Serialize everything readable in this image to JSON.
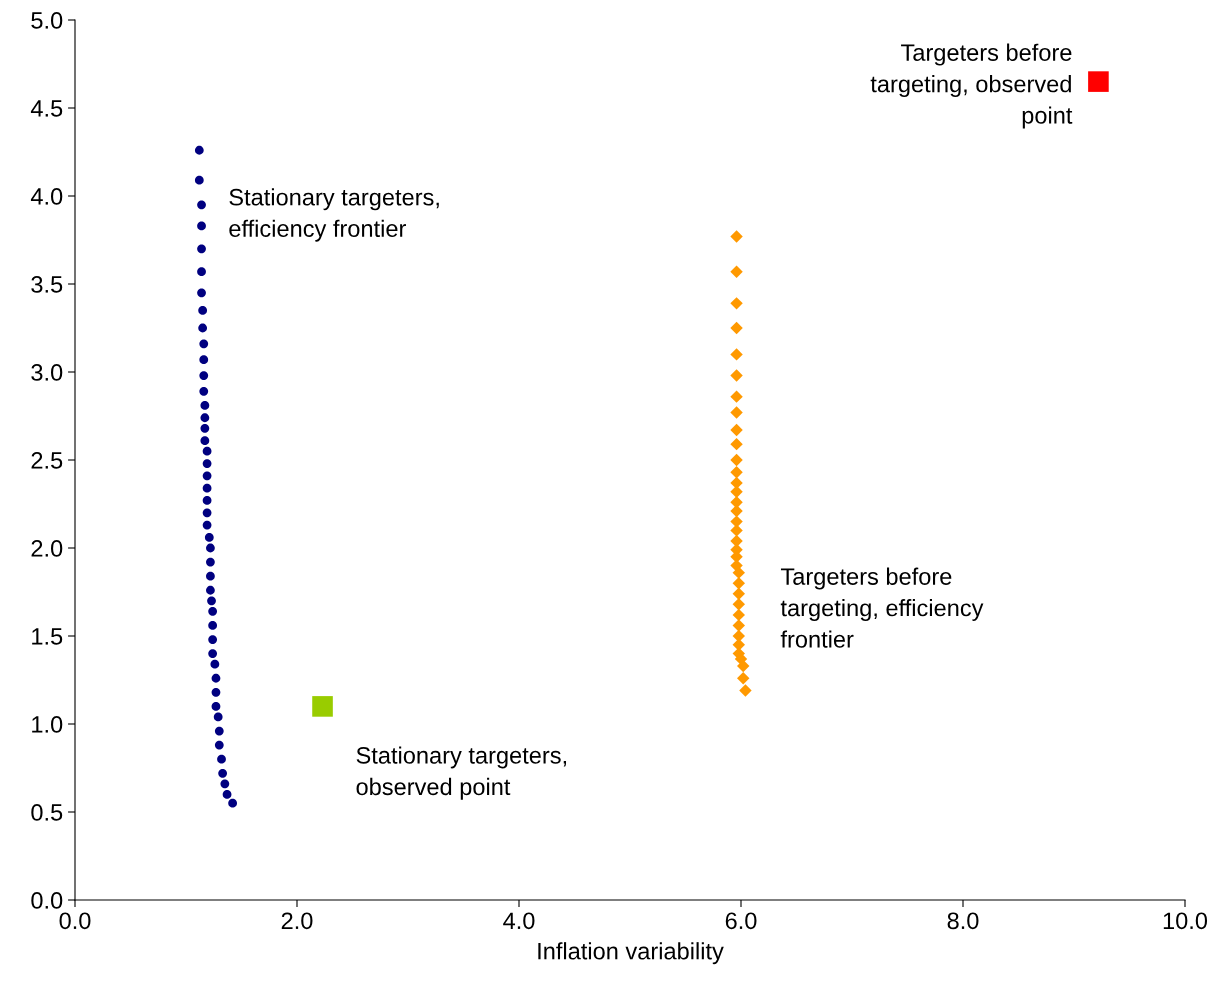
{
  "chart_data": {
    "type": "scatter",
    "xlabel": "Inflation variability",
    "xlim": [
      0,
      10
    ],
    "ylim": [
      0,
      5
    ],
    "xticks": [
      {
        "value": 0,
        "label": "0.0"
      },
      {
        "value": 2,
        "label": "2.0"
      },
      {
        "value": 4,
        "label": "4.0"
      },
      {
        "value": 6,
        "label": "6.0"
      },
      {
        "value": 8,
        "label": "8.0"
      },
      {
        "value": 10,
        "label": "10.0"
      }
    ],
    "yticks": [
      {
        "value": 0,
        "label": "0.0"
      },
      {
        "value": 0.5,
        "label": "0.5"
      },
      {
        "value": 1,
        "label": "1.0"
      },
      {
        "value": 1.5,
        "label": "1.5"
      },
      {
        "value": 2,
        "label": "2.0"
      },
      {
        "value": 2.5,
        "label": "2.5"
      },
      {
        "value": 3,
        "label": "3.0"
      },
      {
        "value": 3.5,
        "label": "3.5"
      },
      {
        "value": 4,
        "label": "4.0"
      },
      {
        "value": 4.5,
        "label": "4.5"
      },
      {
        "value": 5,
        "label": "5.0"
      }
    ],
    "grid": false,
    "legend": false,
    "series": [
      {
        "name": "Stationary targeters,\nefficiency frontier",
        "color": "#000080",
        "marker": "circle",
        "x": [
          1.12,
          1.12,
          1.14,
          1.14,
          1.14,
          1.14,
          1.14,
          1.15,
          1.15,
          1.16,
          1.16,
          1.16,
          1.16,
          1.17,
          1.17,
          1.17,
          1.17,
          1.19,
          1.19,
          1.19,
          1.19,
          1.19,
          1.19,
          1.19,
          1.21,
          1.22,
          1.22,
          1.22,
          1.22,
          1.23,
          1.24,
          1.24,
          1.24,
          1.24,
          1.26,
          1.27,
          1.27,
          1.27,
          1.29,
          1.3,
          1.3,
          1.32,
          1.33,
          1.35,
          1.37,
          1.42
        ],
        "values": [
          4.26,
          4.09,
          3.95,
          3.83,
          3.7,
          3.57,
          3.45,
          3.35,
          3.25,
          3.16,
          3.07,
          2.98,
          2.89,
          2.81,
          2.74,
          2.68,
          2.61,
          2.55,
          2.48,
          2.41,
          2.34,
          2.27,
          2.2,
          2.13,
          2.06,
          2.0,
          1.92,
          1.84,
          1.76,
          1.7,
          1.64,
          1.56,
          1.48,
          1.4,
          1.34,
          1.26,
          1.18,
          1.1,
          1.04,
          0.96,
          0.88,
          0.8,
          0.72,
          0.66,
          0.6,
          0.55
        ]
      },
      {
        "name": "Targeters before\ntargeting, efficiency\nfrontier",
        "color": "#ff9900",
        "marker": "diamond",
        "x": [
          5.96,
          5.96,
          5.96,
          5.96,
          5.96,
          5.96,
          5.96,
          5.96,
          5.96,
          5.96,
          5.96,
          5.96,
          5.96,
          5.96,
          5.96,
          5.96,
          5.96,
          5.96,
          5.96,
          5.96,
          5.96,
          5.96,
          5.98,
          5.98,
          5.98,
          5.98,
          5.98,
          5.98,
          5.98,
          5.98,
          5.98,
          6.0,
          6.02,
          6.02,
          6.04
        ],
        "values": [
          3.77,
          3.57,
          3.39,
          3.25,
          3.1,
          2.98,
          2.86,
          2.77,
          2.67,
          2.59,
          2.5,
          2.43,
          2.37,
          2.32,
          2.26,
          2.21,
          2.15,
          2.1,
          2.04,
          1.99,
          1.95,
          1.9,
          1.86,
          1.8,
          1.74,
          1.68,
          1.62,
          1.56,
          1.5,
          1.45,
          1.4,
          1.37,
          1.33,
          1.26,
          1.19
        ]
      },
      {
        "name": "Stationary targeters,\nobserved point",
        "color": "#99cc00",
        "marker": "square",
        "x": [
          2.23
        ],
        "values": [
          1.1
        ]
      },
      {
        "name": "Targeters before\ntargeting, observed\npoint",
        "color": "#ff0000",
        "marker": "square",
        "x": [
          9.22
        ],
        "values": [
          4.65
        ]
      }
    ]
  }
}
